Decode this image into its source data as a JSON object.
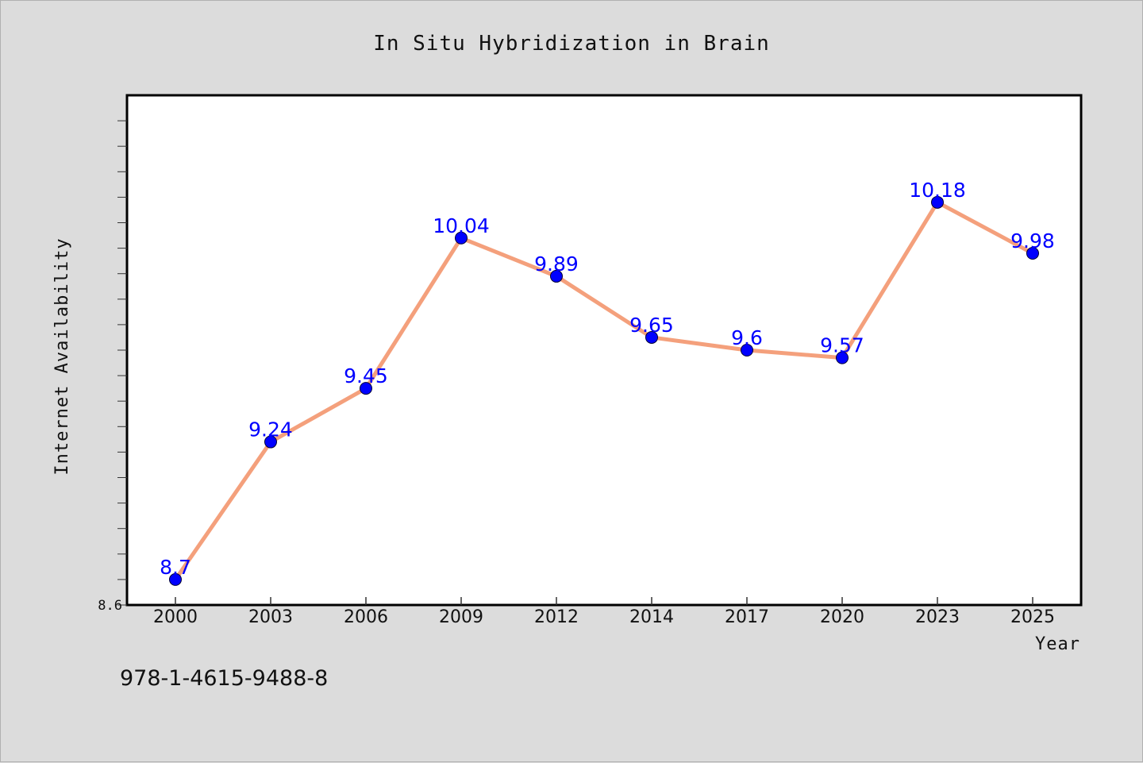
{
  "chart_data": {
    "type": "line",
    "title": "In Situ Hybridization in Brain",
    "xlabel": "Year",
    "ylabel": "Internet Availability",
    "categories": [
      "2000",
      "2003",
      "2006",
      "2009",
      "2012",
      "2014",
      "2017",
      "2020",
      "2023",
      "2025"
    ],
    "series": [
      {
        "values": [
          8.7,
          9.24,
          9.45,
          10.04,
          9.89,
          9.65,
          9.6,
          9.57,
          10.18,
          9.98
        ],
        "line_color": "#f4a07c",
        "marker_color": "#0000ff"
      }
    ],
    "ylim": [
      8.6,
      10.6
    ],
    "yticks_labeled": [
      "8.6"
    ],
    "data_labels": true,
    "grid": false,
    "annotation": "978-1-4615-9488-8"
  },
  "colors": {
    "background": "#dcdcdc",
    "plot_background": "#ffffff",
    "line": "#f4a07c",
    "marker": "#0000ff",
    "data_label": "#0000ff"
  }
}
